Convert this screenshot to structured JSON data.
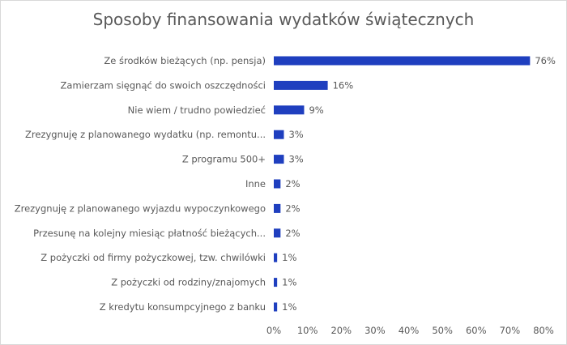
{
  "chart_data": {
    "type": "bar",
    "orientation": "horizontal",
    "title": "Sposoby finansowania wydatków świątecznych",
    "categories": [
      "Ze środków bieżących (np. pensja)",
      "Zamierzam sięgnąć do swoich oszczędności",
      "Nie wiem / trudno powiedzieć",
      "Zrezygnuję z planowanego wydatku (np. remontu...",
      "Z programu 500+",
      "Inne",
      "Zrezygnuję z planowanego wyjazdu wypoczynkowego",
      "Przesunę na kolejny miesiąc płatność bieżących...",
      "Z pożyczki od firmy pożyczkowej, tzw. chwilówki",
      "Z pożyczki od rodziny/znajomych",
      "Z kredytu konsumpcyjnego z banku"
    ],
    "values": [
      76,
      16,
      9,
      3,
      3,
      2,
      2,
      2,
      1,
      1,
      1
    ],
    "value_labels": [
      "76%",
      "16%",
      "9%",
      "3%",
      "3%",
      "2%",
      "2%",
      "2%",
      "1%",
      "1%",
      "1%"
    ],
    "xlim": [
      0,
      80
    ],
    "xticks": [
      "0%",
      "10%",
      "20%",
      "30%",
      "40%",
      "50%",
      "60%",
      "70%",
      "80%"
    ],
    "bar_color": "#1f3fbf",
    "grid": false,
    "legend": "none"
  }
}
